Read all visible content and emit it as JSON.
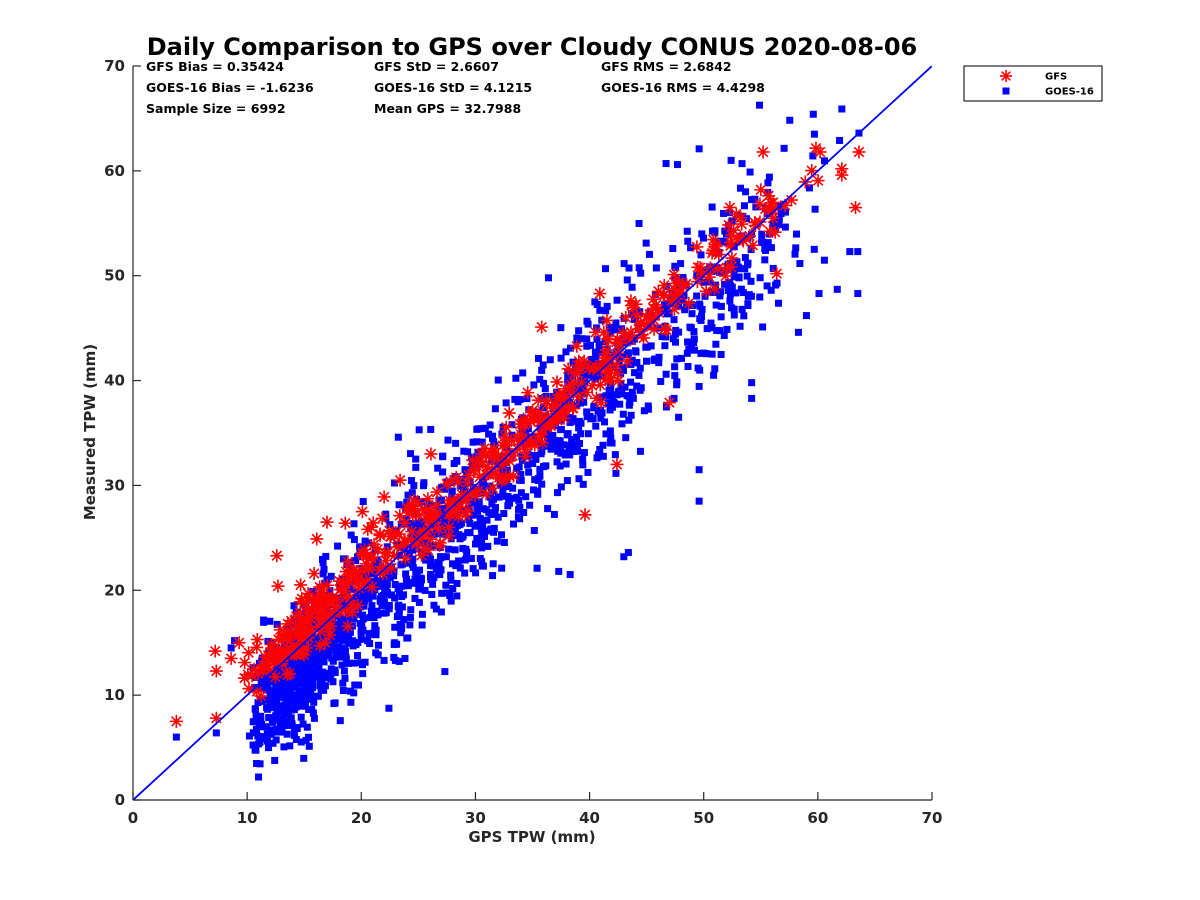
{
  "chart_data": {
    "type": "scatter",
    "title": "Daily Comparison to GPS over Cloudy CONUS 2020-08-06",
    "xlabel": "GPS TPW (mm)",
    "ylabel": "Measured TPW (mm)",
    "xlim": [
      0,
      70
    ],
    "ylim": [
      0,
      70
    ],
    "xticks": [
      "0",
      "10",
      "20",
      "30",
      "40",
      "50",
      "60",
      "70"
    ],
    "yticks": [
      "0",
      "10",
      "20",
      "30",
      "40",
      "50",
      "60",
      "70"
    ],
    "grid": false,
    "legend_position": "top-right, outside plot",
    "stats": [
      [
        "GFS Bias = 0.35424",
        "GFS StD = 2.6607",
        "GFS RMS = 2.6842"
      ],
      [
        "GOES-16 Bias = -1.6236",
        "GOES-16 StD = 4.1215",
        "GOES-16 RMS = 4.4298"
      ],
      [
        "Sample Size = 6992",
        "Mean GPS = 32.7988",
        ""
      ]
    ],
    "reference_line": {
      "type": "identity",
      "color": "#0000ff"
    },
    "series": [
      {
        "name": "GOES-16",
        "marker": "square",
        "color": "#0000ff",
        "count": 6992,
        "mean_x": 32.8,
        "bias": -1.6236,
        "std": 4.1215,
        "x_range": [
          3.8,
          64
        ],
        "outliers": [
          [
            3.8,
            6.0
          ],
          [
            7.3,
            6.4
          ],
          [
            10.2,
            6.1
          ],
          [
            12.6,
            7.8
          ],
          [
            47.8,
            36.5
          ],
          [
            49.6,
            31.5
          ],
          [
            49.6,
            28.5
          ],
          [
            54.2,
            38.3
          ],
          [
            54.2,
            39.8
          ],
          [
            43.4,
            23.6
          ],
          [
            43.0,
            23.2
          ],
          [
            37.3,
            21.8
          ],
          [
            38.3,
            21.5
          ],
          [
            35.4,
            22.1
          ],
          [
            52.4,
            61.0
          ],
          [
            47.7,
            60.6
          ],
          [
            46.7,
            60.7
          ],
          [
            49.6,
            62.1
          ],
          [
            59.6,
            65.4
          ],
          [
            59.7,
            63.5
          ],
          [
            62.1,
            65.9
          ],
          [
            63.6,
            63.6
          ],
          [
            61.9,
            62.9
          ],
          [
            62.8,
            52.3
          ],
          [
            63.5,
            52.3
          ],
          [
            63.5,
            48.3
          ],
          [
            58.3,
            44.6
          ],
          [
            59.0,
            46.2
          ],
          [
            60.1,
            48.3
          ],
          [
            61.7,
            48.7
          ],
          [
            47.4,
            38.3
          ],
          [
            51.8,
            44.3
          ],
          [
            36.4,
            49.8
          ],
          [
            40.9,
            46.7
          ],
          [
            26.9,
            28.6
          ],
          [
            21.3,
            16.2
          ],
          [
            30.7,
            22.3
          ],
          [
            31.5,
            21.4
          ],
          [
            17.6,
            9.2
          ],
          [
            15.8,
            8.3
          ],
          [
            8.9,
            15.2
          ],
          [
            8.6,
            14.5
          ]
        ]
      },
      {
        "name": "GFS",
        "marker": "asterisk",
        "color": "#ff0000",
        "count": 6992,
        "mean_x": 32.8,
        "bias": 0.35424,
        "std": 2.6607,
        "x_range": [
          3.8,
          64
        ],
        "outliers": [
          [
            3.8,
            7.5
          ],
          [
            7.3,
            7.8
          ],
          [
            12.6,
            23.3
          ],
          [
            12.7,
            20.4
          ],
          [
            7.2,
            14.2
          ],
          [
            7.3,
            12.3
          ],
          [
            9.3,
            15.0
          ],
          [
            8.6,
            13.5
          ],
          [
            55.2,
            61.8
          ],
          [
            63.6,
            61.8
          ],
          [
            62.1,
            60.2
          ],
          [
            62.1,
            59.6
          ],
          [
            60.2,
            61.8
          ],
          [
            63.3,
            56.5
          ],
          [
            56.4,
            50.2
          ],
          [
            47.0,
            37.9
          ],
          [
            42.4,
            32.0
          ],
          [
            39.6,
            27.2
          ],
          [
            35.8,
            45.1
          ],
          [
            40.9,
            48.3
          ],
          [
            23.4,
            30.5
          ],
          [
            22.0,
            28.9
          ],
          [
            26.1,
            33.0
          ],
          [
            17.0,
            26.5
          ],
          [
            18.6,
            26.4
          ],
          [
            16.1,
            24.9
          ],
          [
            20.1,
            27.5
          ],
          [
            55.0,
            58.2
          ]
        ]
      }
    ]
  }
}
